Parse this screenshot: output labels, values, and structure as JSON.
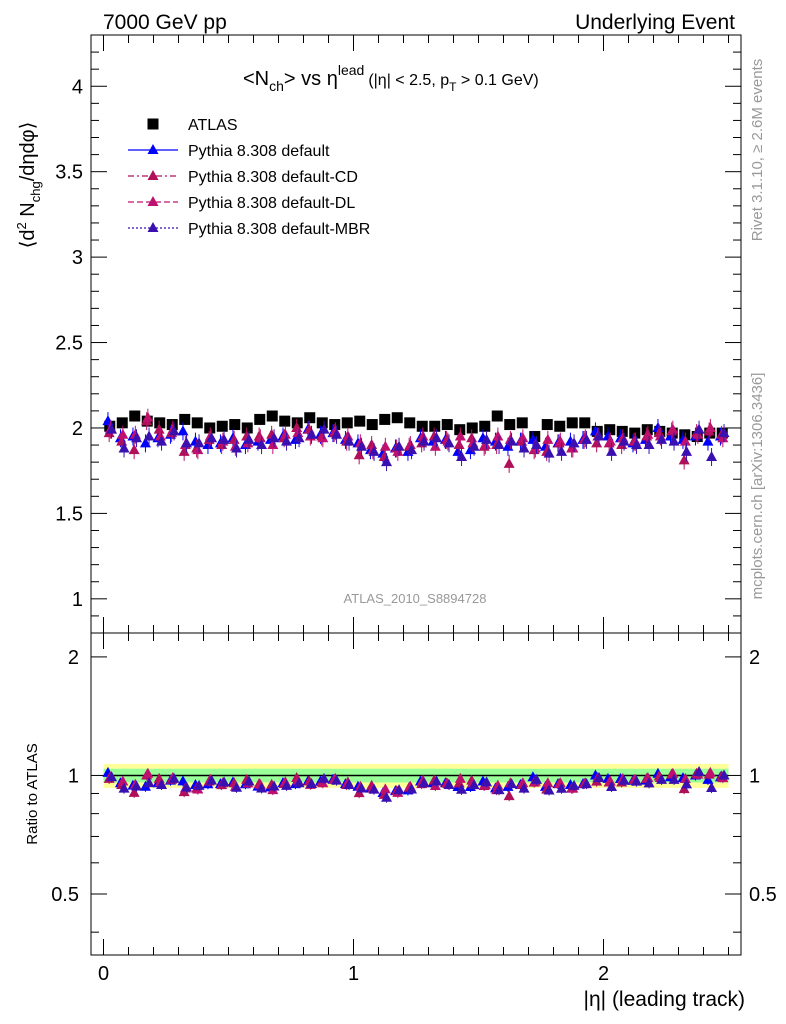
{
  "header": {
    "left": "7000 GeV pp",
    "right": "Underlying Event"
  },
  "plot_title": {
    "main": "<N",
    "main_sub": "ch",
    "mid": "> vs η",
    "mid_sup": "lead",
    "cut": "(|η| < 2.5, p",
    "cut_sub": "T",
    "cut_end": " > 0.1 GeV)"
  },
  "side_labels": {
    "rivet": "Rivet 3.1.10, ≥ 2.6M events",
    "mcplots": "mcplots.cern.ch [arXiv:1306.3436]"
  },
  "watermark": "ATLAS_2010_S8894728",
  "ylabel_main": {
    "pre": "⟨d",
    "sup": "2",
    "mid": " N",
    "sub": "chg",
    "post": "/dηdφ⟩"
  },
  "ylabel_ratio": "Ratio to ATLAS",
  "xlabel": "|η| (leading track)",
  "colors": {
    "data": "#000000",
    "default": "#0000ff",
    "cd": "#b0105a",
    "dl": "#c0106e",
    "mbr": "#3a10b0",
    "band_inner": "#99ff99",
    "band_outer": "#ffff99"
  },
  "chart_data": [
    {
      "type": "scatter",
      "panel": "main",
      "xlim": [
        -0.05,
        2.55
      ],
      "ylim": [
        0.8,
        4.3
      ],
      "yticks": [
        1,
        1.5,
        2,
        2.5,
        3,
        3.5,
        4
      ],
      "ytick_labels": [
        "1",
        "1.5",
        "2",
        "2.5",
        "3",
        "3.5",
        "4"
      ],
      "legend_position": "top-left",
      "x": [
        0.025,
        0.075,
        0.125,
        0.175,
        0.225,
        0.275,
        0.325,
        0.375,
        0.425,
        0.475,
        0.525,
        0.575,
        0.625,
        0.675,
        0.725,
        0.775,
        0.825,
        0.875,
        0.925,
        0.975,
        1.025,
        1.075,
        1.125,
        1.175,
        1.225,
        1.275,
        1.325,
        1.375,
        1.425,
        1.475,
        1.525,
        1.575,
        1.625,
        1.675,
        1.725,
        1.775,
        1.825,
        1.875,
        1.925,
        1.975,
        2.025,
        2.075,
        2.125,
        2.175,
        2.225,
        2.275,
        2.325,
        2.375,
        2.425,
        2.475
      ],
      "series": [
        {
          "name": "ATLAS",
          "marker": "square",
          "values": [
            2.01,
            2.03,
            2.07,
            2.04,
            2.03,
            2.02,
            2.05,
            2.03,
            2.0,
            2.01,
            2.02,
            2.0,
            2.05,
            2.07,
            2.04,
            2.03,
            2.06,
            2.03,
            2.02,
            2.03,
            2.04,
            2.02,
            2.05,
            2.06,
            2.03,
            2.01,
            2.01,
            2.02,
            1.99,
            2.0,
            2.01,
            2.07,
            2.02,
            2.03,
            1.95,
            2.02,
            2.01,
            2.03,
            2.03,
            1.98,
            1.99,
            1.98,
            1.97,
            1.99,
            1.98,
            1.97,
            1.96,
            1.95,
            1.97,
            1.97
          ]
        },
        {
          "name": "Pythia 8.308 default",
          "marker": "triangle",
          "values": [
            2.04,
            1.94,
            1.95,
            1.91,
            1.94,
            1.96,
            1.98,
            1.92,
            1.9,
            1.91,
            1.94,
            1.9,
            1.92,
            1.93,
            1.95,
            1.93,
            1.99,
            1.96,
            1.97,
            1.93,
            1.91,
            1.87,
            1.85,
            1.88,
            1.86,
            1.94,
            1.92,
            1.93,
            1.86,
            1.87,
            1.94,
            1.92,
            1.89,
            1.92,
            1.93,
            1.89,
            1.91,
            1.92,
            1.93,
            1.98,
            1.95,
            1.94,
            1.91,
            1.93,
            2.0,
            1.95,
            1.93,
            1.95,
            1.92,
            1.95
          ]
        },
        {
          "name": "Pythia 8.308 default-CD",
          "marker": "triangle",
          "values": [
            1.97,
            1.92,
            1.87,
            2.04,
            1.99,
            1.97,
            1.86,
            1.88,
            1.93,
            1.9,
            1.93,
            1.95,
            1.95,
            1.96,
            1.94,
            2.0,
            1.99,
            1.95,
            1.97,
            1.92,
            1.84,
            1.9,
            1.83,
            1.88,
            1.89,
            1.91,
            1.95,
            1.93,
            1.9,
            1.94,
            1.89,
            1.9,
            1.79,
            1.92,
            1.87,
            1.86,
            1.91,
            1.88,
            1.93,
            1.91,
            1.91,
            1.9,
            1.92,
            1.95,
            1.97,
            1.98,
            1.81,
            1.97,
            1.98,
            1.96
          ]
        },
        {
          "name": "Pythia 8.308 default-DL",
          "marker": "triangle",
          "values": [
            1.99,
            1.96,
            1.96,
            2.06,
            1.95,
            1.99,
            1.9,
            1.87,
            1.95,
            1.92,
            1.89,
            1.91,
            1.94,
            1.9,
            1.96,
            1.97,
            1.95,
            1.94,
            1.98,
            1.95,
            1.91,
            1.87,
            1.89,
            1.86,
            1.9,
            1.95,
            1.89,
            1.92,
            1.95,
            1.91,
            1.9,
            1.95,
            1.93,
            1.94,
            1.88,
            1.93,
            1.92,
            1.88,
            1.94,
            1.95,
            1.92,
            1.94,
            1.92,
            1.96,
            1.95,
            1.99,
            1.92,
            1.96,
            2.0,
            1.94
          ]
        },
        {
          "name": "Pythia 8.308 default-MBR",
          "marker": "triangle",
          "values": [
            1.99,
            1.88,
            1.94,
            1.95,
            1.92,
            1.98,
            1.91,
            1.91,
            1.94,
            1.93,
            1.88,
            1.93,
            1.9,
            1.94,
            1.92,
            1.94,
            1.96,
            1.99,
            1.96,
            1.92,
            1.89,
            1.86,
            1.8,
            1.89,
            1.87,
            1.92,
            1.94,
            1.91,
            1.83,
            1.89,
            1.93,
            1.9,
            1.92,
            1.88,
            1.9,
            1.85,
            1.86,
            1.91,
            1.93,
            1.95,
            1.86,
            1.92,
            1.9,
            1.9,
            1.93,
            1.92,
            1.86,
            1.99,
            1.83,
            1.97
          ]
        }
      ]
    },
    {
      "type": "scatter",
      "panel": "ratio",
      "xlim": [
        -0.05,
        2.55
      ],
      "ylim": [
        0.35,
        2.3
      ],
      "yticks": [
        0.5,
        1,
        2
      ],
      "ytick_labels": [
        "0.5",
        "1",
        "2"
      ],
      "xticks": [
        0,
        1,
        2
      ],
      "xtick_labels": [
        "0",
        "1",
        "2"
      ],
      "reference_line": 1,
      "band_inner_halfwidth": 0.04,
      "band_outer_halfwidth": 0.07
    }
  ]
}
